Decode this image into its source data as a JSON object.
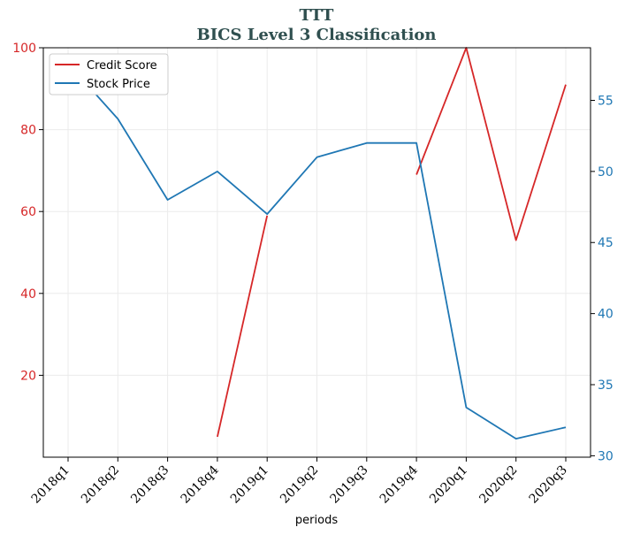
{
  "chart_data": {
    "type": "line",
    "title": "TTT",
    "subtitle": "BICS Level 3 Classification",
    "xlabel": "periods",
    "categories": [
      "2018q1",
      "2018q2",
      "2018q3",
      "2018q4",
      "2019q1",
      "2019q2",
      "2019q3",
      "2019q4",
      "2020q1",
      "2020q2",
      "2020q3"
    ],
    "y_left": {
      "range": [
        0,
        100
      ],
      "ticks": [
        20,
        40,
        60,
        80,
        100
      ]
    },
    "y_right": {
      "range": [
        29.9,
        58.7
      ],
      "ticks": [
        30,
        35,
        40,
        45,
        50,
        55
      ]
    },
    "grid": true,
    "legend_position": "top-left",
    "series": [
      {
        "name": "Credit Score",
        "axis": "left",
        "color": "#d62728",
        "values": [
          null,
          null,
          null,
          5,
          59,
          null,
          null,
          69,
          100,
          53,
          91
        ]
      },
      {
        "name": "Stock Price",
        "axis": "right",
        "color": "#1f77b4",
        "values": [
          57.6,
          53.7,
          48.0,
          50.0,
          47.0,
          51.0,
          52.0,
          52.0,
          33.4,
          31.2,
          32.0
        ]
      }
    ]
  }
}
